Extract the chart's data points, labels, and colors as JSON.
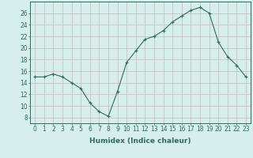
{
  "x": [
    0,
    1,
    2,
    3,
    4,
    5,
    6,
    7,
    8,
    9,
    10,
    11,
    12,
    13,
    14,
    15,
    16,
    17,
    18,
    19,
    20,
    21,
    22,
    23
  ],
  "y": [
    15,
    15,
    15.5,
    15,
    14,
    13,
    10.5,
    9,
    8.2,
    12.5,
    17.5,
    19.5,
    21.5,
    22,
    23,
    24.5,
    25.5,
    26.5,
    27,
    26,
    21,
    18.5,
    17,
    15
  ],
  "line_color": "#2e6b5e",
  "marker": "+",
  "marker_size": 3,
  "bg_color": "#d6eeec",
  "grid_color": "#c8b8b8",
  "xlabel": "Humidex (Indice chaleur)",
  "xlim": [
    -0.5,
    23.5
  ],
  "ylim": [
    7,
    28
  ],
  "yticks": [
    8,
    10,
    12,
    14,
    16,
    18,
    20,
    22,
    24,
    26
  ],
  "xticks": [
    0,
    1,
    2,
    3,
    4,
    5,
    6,
    7,
    8,
    9,
    10,
    11,
    12,
    13,
    14,
    15,
    16,
    17,
    18,
    19,
    20,
    21,
    22,
    23
  ],
  "label_fontsize": 6.5,
  "tick_fontsize": 5.5
}
